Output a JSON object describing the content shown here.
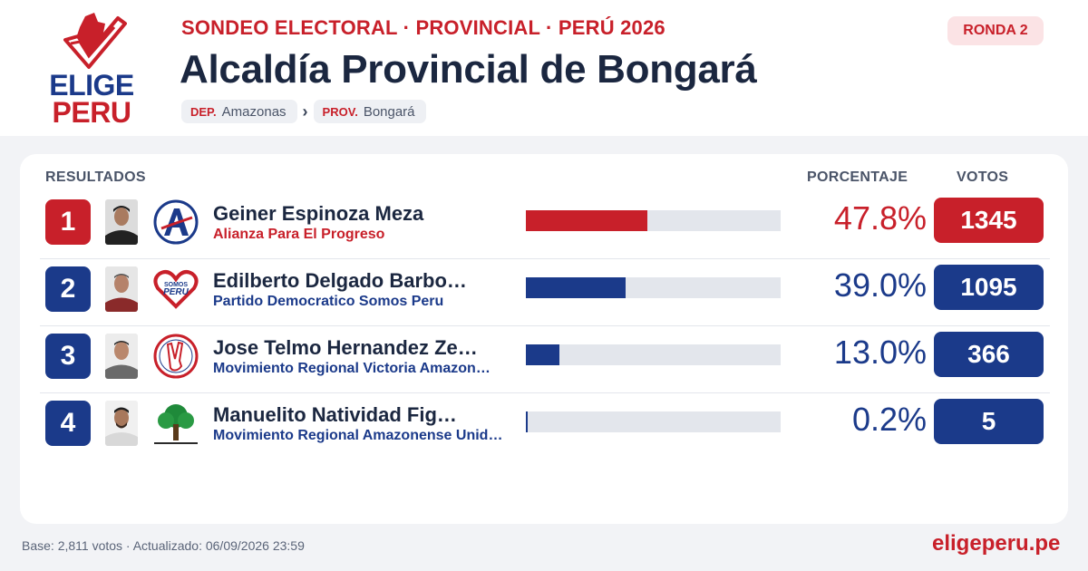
{
  "brand": {
    "line1": "ELIGE",
    "line2": "PERU",
    "site": "eligeperu.pe"
  },
  "header": {
    "kicker": "SONDEO ELECTORAL · PROVINCIAL · PERÚ 2026",
    "title": "Alcaldía Provincial de Bongará",
    "badge": "RONDA 2",
    "breadcrumb": [
      {
        "key": "DEP.",
        "value": "Amazonas"
      },
      {
        "key": "PROV.",
        "value": "Bongará"
      }
    ],
    "separator": "›"
  },
  "results": {
    "heading": "RESULTADOS",
    "col_pct": "PORCENTAJE",
    "col_votes": "VOTOS",
    "rows": [
      {
        "rank": "1",
        "name": "Geiner Espinoza Meza",
        "party": "Alianza Para El Progreso",
        "percent_label": "47.8%",
        "share": 0.478,
        "votes": "1345",
        "color": "#c8202a",
        "party_icon": "app-logo-icon"
      },
      {
        "rank": "2",
        "name": "Edilberto Delgado Barbo…",
        "party": "Partido Democratico Somos Peru",
        "percent_label": "39.0%",
        "share": 0.39,
        "votes": "1095",
        "color": "#1b3a8a",
        "party_icon": "somos-peru-heart-icon"
      },
      {
        "rank": "3",
        "name": "Jose Telmo Hernandez Ze…",
        "party": "Movimiento Regional Victoria Amazon…",
        "percent_label": "13.0%",
        "share": 0.13,
        "votes": "366",
        "color": "#1b3a8a",
        "party_icon": "victoria-hand-icon"
      },
      {
        "rank": "4",
        "name": "Manuelito Natividad Fig…",
        "party": "Movimiento Regional Amazonense Unid…",
        "percent_label": "0.2%",
        "share": 0.002,
        "votes": "5",
        "color": "#1b3a8a",
        "party_icon": "tree-icon"
      }
    ]
  },
  "footer": {
    "note": "Base: 2,811 votos · Actualizado: 06/09/2026 23:59"
  }
}
